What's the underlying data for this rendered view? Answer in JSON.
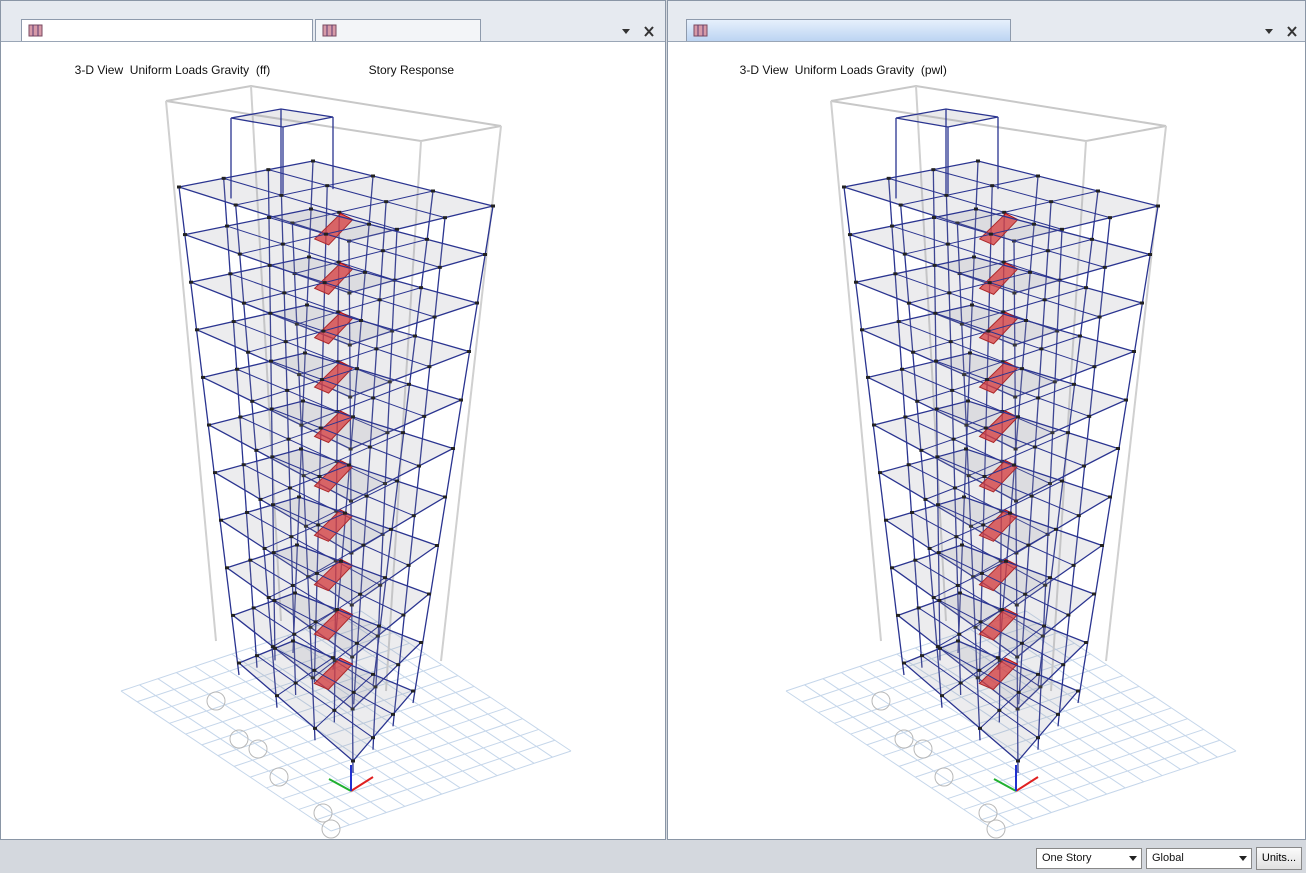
{
  "left_panel": {
    "tabs": [
      "3-D View  Uniform Loads Gravity  (ff)",
      "Story Response"
    ]
  },
  "right_panel": {
    "tabs": [
      "3-D View  Uniform Loads Gravity  (pwl)"
    ]
  },
  "status_bar": {
    "story_option": "One Story",
    "coordinate_system": "Global",
    "units_button": "Units..."
  }
}
